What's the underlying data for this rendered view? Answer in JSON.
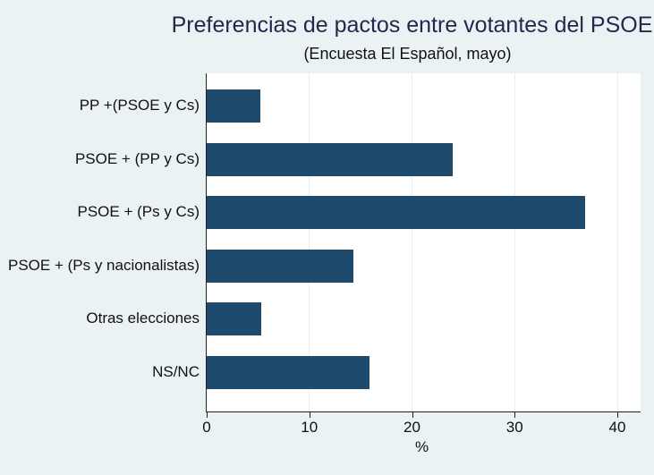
{
  "chart_data": {
    "type": "bar",
    "orientation": "horizontal",
    "title": "Preferencias de pactos entre votantes del PSOE",
    "subtitle": "(Encuesta El Español, mayo)",
    "xlabel": "%",
    "ylabel": "",
    "categories": [
      "PP +(PSOE y Cs)",
      "PSOE + (PP y Cs)",
      "PSOE + (Ps y Cs)",
      "PSOE + (Ps y nacionalistas)",
      "Otras elecciones",
      "NS/NC"
    ],
    "values": [
      5.2,
      24.0,
      36.9,
      14.3,
      5.3,
      15.9
    ],
    "xlim": [
      0,
      42
    ],
    "xticks": [
      "0",
      "10",
      "20",
      "30",
      "40"
    ],
    "grid": true,
    "bar_color": "#1e4a6e",
    "background": "#eaf2f3"
  }
}
